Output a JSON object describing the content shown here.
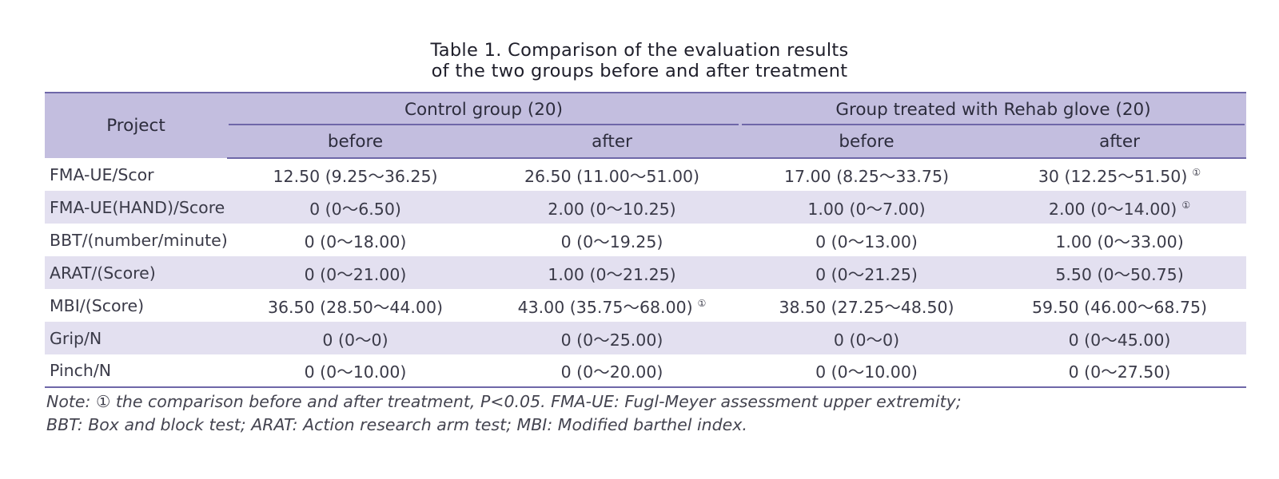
{
  "caption": {
    "line1": "Table 1.  Comparison of the evaluation results",
    "line2": "of the two groups before and after treatment"
  },
  "table": {
    "project_header": "Project",
    "groups": [
      "Control group (20)",
      "Group treated with Rehab glove (20)"
    ],
    "subheaders": [
      "before",
      "after",
      "before",
      "after"
    ],
    "significance_mark": "①",
    "rows": [
      {
        "project": "FMA-UE/Scor",
        "values": [
          "12.50 (9.25～36.25)",
          "26.50 (11.00～51.00)",
          "17.00 (8.25～33.75)",
          "30 (12.25～51.50)"
        ],
        "marks": [
          "",
          "",
          "",
          "①"
        ]
      },
      {
        "project": "FMA-UE(HAND)/Score",
        "values": [
          "0 (0～6.50)",
          "2.00 (0～10.25)",
          "1.00 (0～7.00)",
          "2.00 (0～14.00)"
        ],
        "marks": [
          "",
          "",
          "",
          "①"
        ]
      },
      {
        "project": "BBT/(number/minute)",
        "values": [
          "0 (0～18.00)",
          "0 (0～19.25)",
          "0 (0～13.00)",
          "1.00 (0～33.00)"
        ],
        "marks": [
          "",
          "",
          "",
          ""
        ]
      },
      {
        "project": "ARAT/(Score)",
        "values": [
          "0 (0～21.00)",
          "1.00 (0～21.25)",
          "0 (0～21.25)",
          "5.50 (0～50.75)"
        ],
        "marks": [
          "",
          "",
          "",
          ""
        ]
      },
      {
        "project": "MBI/(Score)",
        "values": [
          "36.50 (28.50～44.00)",
          "43.00 (35.75～68.00)",
          "38.50 (27.25～48.50)",
          "59.50 (46.00～68.75)"
        ],
        "marks": [
          "",
          "①",
          "",
          ""
        ]
      },
      {
        "project": "Grip/N",
        "values": [
          "0 (0～0)",
          "0 (0～25.00)",
          "0 (0～0)",
          "0 (0～45.00)"
        ],
        "marks": [
          "",
          "",
          "",
          ""
        ]
      },
      {
        "project": "Pinch/N",
        "values": [
          "0 (0～10.00)",
          "0 (0～20.00)",
          "0 (0～10.00)",
          "0 (0～27.50)"
        ],
        "marks": [
          "",
          "",
          "",
          ""
        ]
      }
    ]
  },
  "note": {
    "line1": "Note: ① the comparison before and after treatment, P<0.05. FMA-UE: Fugl-Meyer assessment upper extremity;",
    "line2": "BBT: Box and block test; ARAT: Action research arm test; MBI: Modified barthel index."
  },
  "colors": {
    "header_bg": "#c3bedf",
    "band_bg": "#e3e0f0",
    "rule": "#6e67a8"
  }
}
